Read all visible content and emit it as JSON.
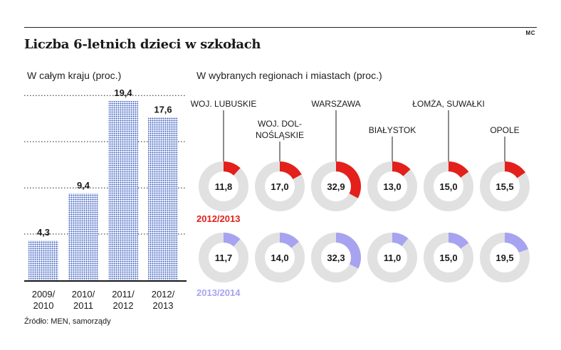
{
  "header": {
    "title": "Liczba 6-letnich dzieci w szkołach",
    "credit": "MC"
  },
  "source": "Źródło: MEN, samorządy",
  "colors": {
    "bar": "#3a5cc0",
    "red": "#e3201b",
    "purple": "#a7a3f0",
    "ring": "#e1e1e1"
  },
  "chart_data": [
    {
      "type": "bar",
      "title": "W całym kraju (proc.)",
      "categories": [
        "2009/\n2010",
        "2010/\n2011",
        "2011/\n2012",
        "2012/\n2013"
      ],
      "values": [
        4.3,
        9.4,
        19.4,
        17.6
      ],
      "value_labels": [
        "4,3",
        "9,4",
        "19,4",
        "17,6"
      ],
      "ylim": [
        0,
        20
      ],
      "grid": true
    },
    {
      "type": "pie",
      "title": "W wybranych regionach i miastach (proc.)",
      "categories": [
        "WOJ. LUBUSKIE",
        "WOJ. DOLNOŚLĄSKIE",
        "WARSZAWA",
        "BIAŁYSTOK",
        "ŁOMŻA, SUWAŁKI",
        "OPOLE"
      ],
      "category_labels": [
        [
          "WOJ. LUBUSKIE"
        ],
        [
          "WOJ. DOL-",
          "NOŚLĄSKIE"
        ],
        [
          "WARSZAWA"
        ],
        [
          "BIAŁYSTOK"
        ],
        [
          "ŁOMŻA, SUWAŁKI"
        ],
        [
          "OPOLE"
        ]
      ],
      "series": [
        {
          "name": "2012/2013",
          "values": [
            11.8,
            17.0,
            32.9,
            13.0,
            15.0,
            15.5
          ],
          "labels": [
            "11,8",
            "17,0",
            "32,9",
            "13,0",
            "15,0",
            "15,5"
          ]
        },
        {
          "name": "2013/2014",
          "values": [
            11.7,
            14.0,
            32.3,
            11.0,
            15.0,
            19.5
          ],
          "labels": [
            "11,7",
            "14,0",
            "32,3",
            "11,0",
            "15,0",
            "19,5"
          ]
        }
      ]
    }
  ]
}
